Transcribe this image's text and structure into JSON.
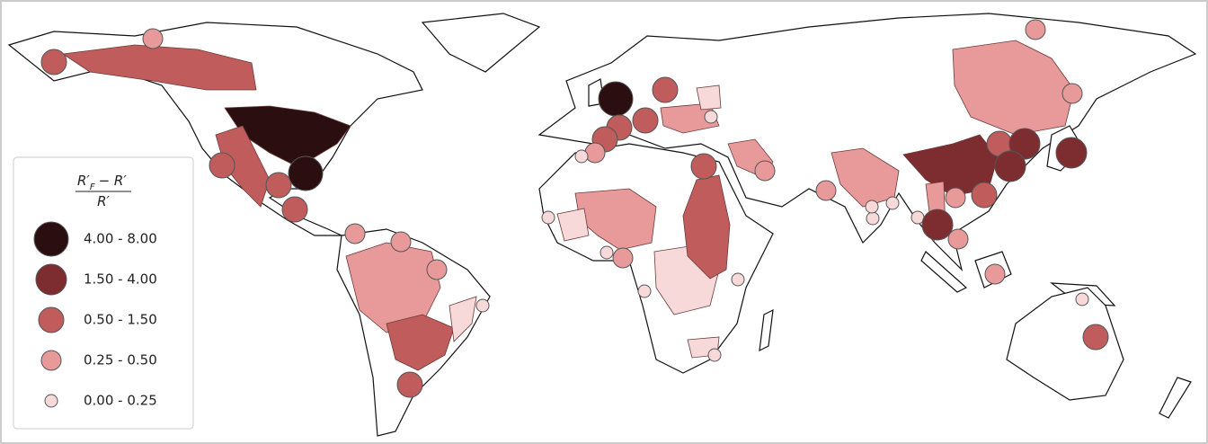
{
  "legend": {
    "title": {
      "numerator": {
        "base": "R′",
        "subscript": "F",
        "rest": "− R′"
      },
      "denominator": "R′"
    },
    "items": [
      {
        "label": "4.00 - 8.00",
        "color": "#2b0f10"
      },
      {
        "label": "1.50 - 4.00",
        "color": "#7d2d2f"
      },
      {
        "label": "0.50 - 1.50",
        "color": "#c05c5c"
      },
      {
        "label": "0.25 - 0.50",
        "color": "#e89a9a"
      },
      {
        "label": "0.00 - 0.25",
        "color": "#f8d9da"
      }
    ]
  }
}
